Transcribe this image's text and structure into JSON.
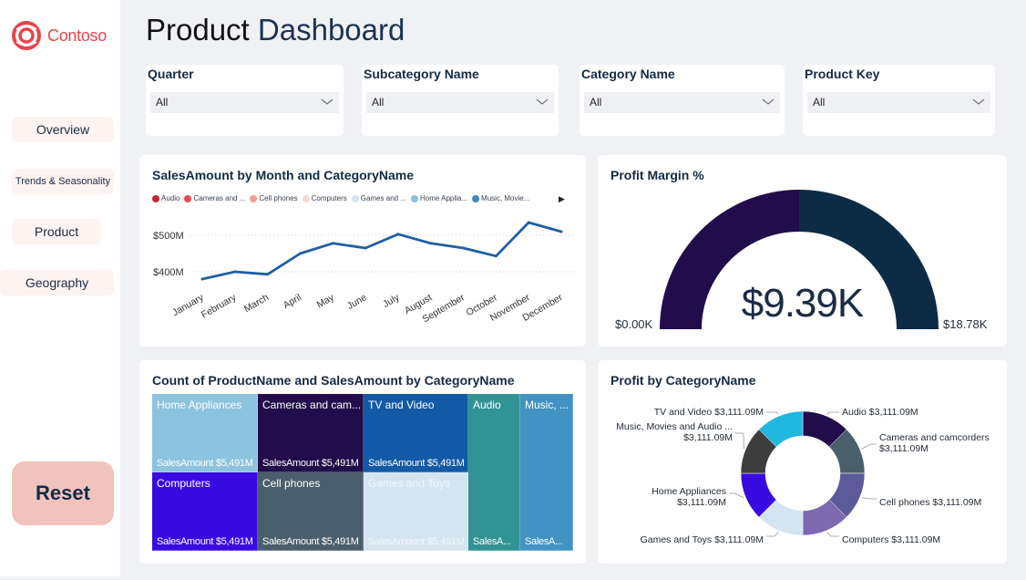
{
  "brand": {
    "name": "Contoso",
    "color": "#e8434a"
  },
  "header": {
    "title_part1": "Product",
    "title_part2": "Dashboard"
  },
  "nav": [
    {
      "label": "Overview"
    },
    {
      "label": "Trends & Seasonality"
    },
    {
      "label": "Product"
    },
    {
      "label": "Geography"
    }
  ],
  "reset_label": "Reset",
  "slicers": [
    {
      "label": "Quarter",
      "value": "All"
    },
    {
      "label": "Subcategory Name",
      "value": "All"
    },
    {
      "label": "Category Name",
      "value": "All"
    },
    {
      "label": "Product Key",
      "value": "All"
    }
  ],
  "chart_data": [
    {
      "type": "line",
      "title": "SalesAmount by Month and CategoryName",
      "legend": [
        {
          "name": "Audio",
          "color": "#c8262f"
        },
        {
          "name": "Cameras and ...",
          "color": "#e84b4b"
        },
        {
          "name": "Cell phones",
          "color": "#f29b94"
        },
        {
          "name": "Computers",
          "color": "#f7d6d1"
        },
        {
          "name": "Games and ...",
          "color": "#d4e4f1"
        },
        {
          "name": "Home Applia...",
          "color": "#8cc3df"
        },
        {
          "name": "Music, Movie...",
          "color": "#3c8bc4"
        }
      ],
      "legend_position": "top",
      "x": [
        "January",
        "February",
        "March",
        "April",
        "May",
        "June",
        "July",
        "August",
        "September",
        "October",
        "November",
        "December"
      ],
      "series": [
        {
          "name": "SalesAmount",
          "values": [
            380,
            400,
            393,
            450,
            478,
            465,
            503,
            478,
            465,
            443,
            535,
            510
          ],
          "color": "#1f5fa3"
        }
      ],
      "yticks": [
        {
          "value": 400,
          "label": "$400M"
        },
        {
          "value": 500,
          "label": "$500M"
        }
      ],
      "ylim": [
        360,
        550
      ],
      "yunit": "$M",
      "grid": true
    },
    {
      "type": "gauge",
      "title": "Profit Margin %",
      "value": 9.39,
      "value_label": "$9.39K",
      "min": 0,
      "min_label": "$0.00K",
      "max": 18.78,
      "max_label": "$18.78K",
      "fill_color": "#220c4b",
      "track_color": "#0c2b45"
    },
    {
      "type": "treemap",
      "title": "Count of ProductName and SalesAmount by CategoryName",
      "tiles": [
        {
          "name": "Home Appliances",
          "value_label": "SalesAmount $5,491M",
          "color": "#8cc3df",
          "text_color": "#ffffff"
        },
        {
          "name": "Cameras and cam...",
          "value_label": "SalesAmount $5,491M",
          "color": "#220c4b",
          "text_color": "#ffffff"
        },
        {
          "name": "TV and Video",
          "value_label": "SalesAmount $5,491M",
          "color": "#125aa6",
          "text_color": "#ffffff"
        },
        {
          "name": "Computers",
          "value_label": "SalesAmount $5,491M",
          "color": "#3a0be0",
          "text_color": "#ffffff"
        },
        {
          "name": "Cell phones",
          "value_label": "SalesAmount $5,491M",
          "color": "#4a5f6c",
          "text_color": "#ffffff"
        },
        {
          "name": "Games and Toys",
          "value_label": "SalesAmount $5,491M",
          "color": "#d4e4f1",
          "text_color": "#f5f8fb"
        },
        {
          "name": "Audio",
          "value_label": "SalesA...",
          "color": "#329395",
          "text_color": "#ffffff"
        },
        {
          "name": "Music, ...",
          "value_label": "SalesA...",
          "color": "#4293c3",
          "text_color": "#ffffff"
        }
      ]
    },
    {
      "type": "pie",
      "title": "Profit by CategoryName",
      "donut": true,
      "slices": [
        {
          "name": "Audio",
          "value": 3111.09,
          "label": "Audio $3,111.09M",
          "color": "#220c4b"
        },
        {
          "name": "Cameras and camcorders",
          "value": 3111.09,
          "label": "Cameras and camcorders\n$3,111.09M",
          "color": "#4a5f6c"
        },
        {
          "name": "Cell phones",
          "value": 3111.09,
          "label": "Cell phones $3,111.09M",
          "color": "#5c5a99"
        },
        {
          "name": "Computers",
          "value": 3111.09,
          "label": "Computers $3,111.09M",
          "color": "#7d69b0"
        },
        {
          "name": "Games and Toys",
          "value": 3111.09,
          "label": "Games and Toys $3,111.09M",
          "color": "#d4e4f1"
        },
        {
          "name": "Home Appliances",
          "value": 3111.09,
          "label": "Home Appliances\n$3,111.09M",
          "color": "#3a0be0"
        },
        {
          "name": "Music, Movies and Audio ...",
          "value": 3111.09,
          "label": "Music, Movies and Audio ...\n$3,111.09M",
          "color": "#3d3d3d"
        },
        {
          "name": "TV and Video",
          "value": 3111.09,
          "label": "TV and Video $3,111.09M",
          "color": "#22b7de"
        }
      ]
    }
  ]
}
